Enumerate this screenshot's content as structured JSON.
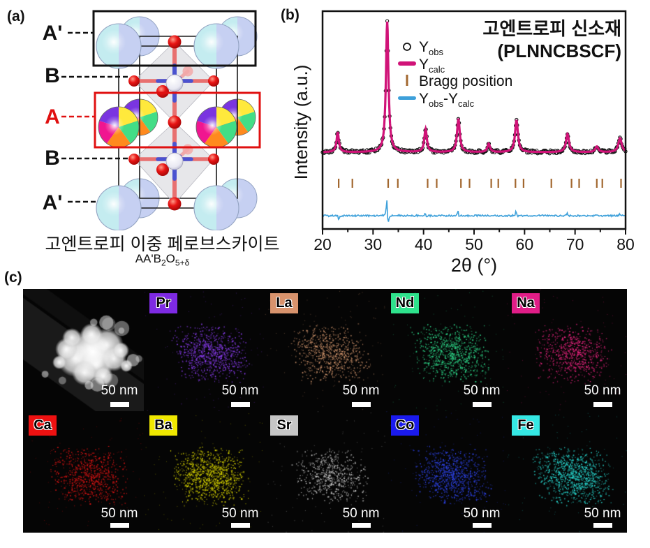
{
  "figure": {
    "panel_a": {
      "tag": "(a)",
      "site_labels": [
        {
          "text": "A'",
          "color": "#111111"
        },
        {
          "text": "B",
          "color": "#111111"
        },
        {
          "text": "A",
          "color": "#e01010"
        },
        {
          "text": "B",
          "color": "#111111"
        },
        {
          "text": "A'",
          "color": "#111111"
        }
      ],
      "caption": "고엔트로피 이중 페로브스카이트",
      "formula": "AA'B_{2}O_{5+δ}",
      "colors": {
        "a_prime_left": "#c4ecf0",
        "a_prime_right": "#c6d0f2",
        "a_site_sectors": [
          "#ffe93c",
          "#43dd86",
          "#ff8a1e",
          "#f01690",
          "#7a35e0"
        ],
        "oxygen": "#e81414",
        "b_site": "#f2f2f8",
        "bond": "#4a52d0",
        "bond_oxygen": "#e87070",
        "a_box": "#e01010",
        "a_prime_box": "#111111"
      }
    },
    "panel_b": {
      "tag": "(b)",
      "chart_data": {
        "type": "line",
        "subtype": "xrd-rietveld-refinement",
        "title_lines": [
          "고엔트로피 신소재",
          "(PLNNCBSCF)"
        ],
        "xlabel": "2θ (°)",
        "ylabel": "Intensity (a.u.)",
        "xlim": [
          20,
          80
        ],
        "x_major_ticks": [
          20,
          30,
          40,
          50,
          60,
          70,
          80
        ],
        "x_minor_ticks": [
          25,
          35,
          45,
          55,
          65,
          75
        ],
        "grid": false,
        "legend_position": "upper-left-inside",
        "series": [
          {
            "name": "Y_{obs}",
            "style": "open-circle",
            "color": "#141414"
          },
          {
            "name": "Y_{calc}",
            "style": "line",
            "color": "#d01378"
          },
          {
            "name": "Bragg position",
            "style": "tick",
            "color": "#a2672f"
          },
          {
            "name": "Y_{obs}-Y_{calc}",
            "style": "line",
            "color": "#3da0da"
          }
        ],
        "peaks": [
          {
            "two_theta": 23.0,
            "rel_height": 28,
            "hwhm": 0.28
          },
          {
            "two_theta": 32.8,
            "rel_height": 187,
            "hwhm": 0.3
          },
          {
            "two_theta": 40.4,
            "rel_height": 33,
            "hwhm": 0.3
          },
          {
            "two_theta": 46.9,
            "rel_height": 48,
            "hwhm": 0.32
          },
          {
            "two_theta": 52.9,
            "rel_height": 12,
            "hwhm": 0.3
          },
          {
            "two_theta": 58.4,
            "rel_height": 46,
            "hwhm": 0.34
          },
          {
            "two_theta": 68.5,
            "rel_height": 26,
            "hwhm": 0.36
          },
          {
            "two_theta": 74.3,
            "rel_height": 8,
            "hwhm": 0.35
          },
          {
            "two_theta": 78.9,
            "rel_height": 20,
            "hwhm": 0.4
          }
        ],
        "bragg_positions": [
          23.2,
          25.9,
          33.0,
          34.9,
          40.8,
          42.6,
          47.4,
          49.1,
          53.4,
          54.8,
          58.2,
          59.8,
          65.3,
          69.3,
          70.8,
          74.3,
          75.4,
          79.1
        ],
        "diff_spikes": [
          {
            "two_theta": 23.0,
            "up": 2,
            "down": 7
          },
          {
            "two_theta": 32.8,
            "up": 26,
            "down": 17
          },
          {
            "two_theta": 40.4,
            "up": 6,
            "down": 2
          },
          {
            "two_theta": 46.9,
            "up": 8,
            "down": 3
          },
          {
            "two_theta": 58.4,
            "up": 8,
            "down": 2
          },
          {
            "two_theta": 68.5,
            "up": 5,
            "down": 2
          },
          {
            "two_theta": 78.9,
            "up": 3,
            "down": 1
          }
        ]
      }
    },
    "panel_c": {
      "tag": "(c)",
      "scale_label": "50 nm",
      "tiles": [
        {
          "symbol": "",
          "kind": "haadf",
          "label_bg": "",
          "dot_color": "#e8e8e8",
          "dots": 0
        },
        {
          "symbol": "Pr",
          "kind": "map",
          "label_bg": "#7e2ae3",
          "dot_color": "#8a3cf0",
          "dots": 780
        },
        {
          "symbol": "La",
          "kind": "map",
          "label_bg": "#d8936d",
          "dot_color": "#d89a70",
          "dots": 680
        },
        {
          "symbol": "Nd",
          "kind": "map",
          "label_bg": "#2ee28c",
          "dot_color": "#2ed98a",
          "dots": 820
        },
        {
          "symbol": "Na",
          "kind": "map",
          "label_bg": "#e01d87",
          "dot_color": "#e8247f",
          "dots": 680
        },
        {
          "symbol": "Ca",
          "kind": "map",
          "label_bg": "#ee1111",
          "dot_color": "#e01414",
          "dots": 720
        },
        {
          "symbol": "Ba",
          "kind": "map",
          "label_bg": "#f0e800",
          "dot_color": "#d8d400",
          "dots": 980
        },
        {
          "symbol": "Sr",
          "kind": "map",
          "label_bg": "#c6c6c6",
          "dot_color": "#cccccc",
          "dots": 560
        },
        {
          "symbol": "Co",
          "kind": "map",
          "label_bg": "#1a1aee",
          "dot_color": "#2f45ec",
          "dots": 830
        },
        {
          "symbol": "Fe",
          "kind": "map",
          "label_bg": "#35e8e4",
          "dot_color": "#28d8d0",
          "dots": 980
        }
      ]
    }
  }
}
